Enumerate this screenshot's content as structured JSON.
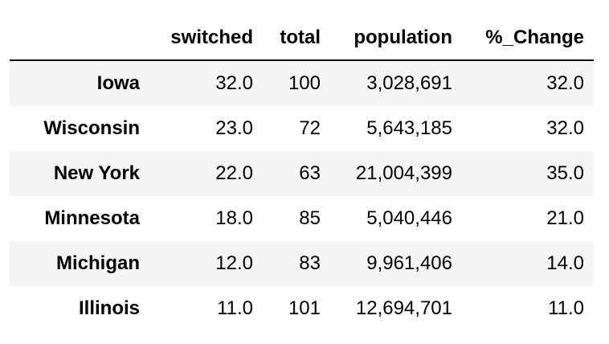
{
  "table": {
    "columns": [
      "switched",
      "total",
      "population",
      "%_Change"
    ],
    "rows": [
      {
        "index": "Iowa",
        "switched": "32.0",
        "total": "100",
        "population": "3,028,691",
        "change": "32.0"
      },
      {
        "index": "Wisconsin",
        "switched": "23.0",
        "total": "72",
        "population": "5,643,185",
        "change": "32.0"
      },
      {
        "index": "New York",
        "switched": "22.0",
        "total": "63",
        "population": "21,004,399",
        "change": "35.0"
      },
      {
        "index": "Minnesota",
        "switched": "18.0",
        "total": "85",
        "population": "5,040,446",
        "change": "21.0"
      },
      {
        "index": "Michigan",
        "switched": "12.0",
        "total": "83",
        "population": "9,961,406",
        "change": "14.0"
      },
      {
        "index": "Illinois",
        "switched": "11.0",
        "total": "101",
        "population": "12,694,701",
        "change": "11.0"
      }
    ]
  }
}
